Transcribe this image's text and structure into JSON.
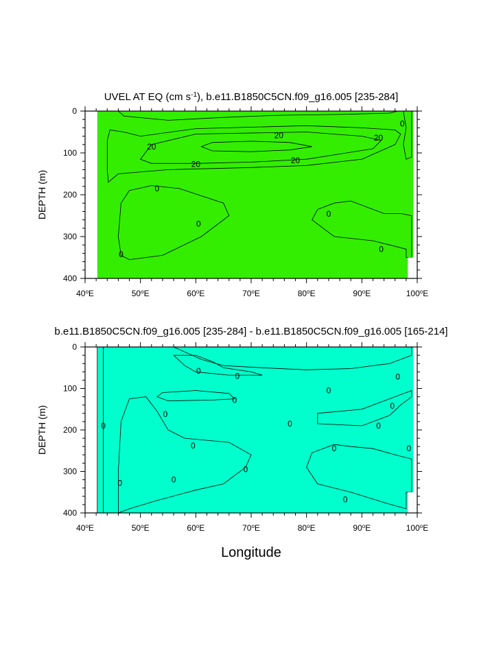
{
  "colors": {
    "neg": "#00ffcc",
    "low": "#33ee00",
    "mid": "#66ff00",
    "hi": "#ffff00",
    "top": "#ffcc33",
    "gap": "#ffffff"
  },
  "chart_data": [
    {
      "type": "contour",
      "title": "UVEL AT EQ (cm s",
      "title_sup": "-1",
      "title_suffix": "), b.e11.B1850C5CN.f09_g16.005 [235-284]",
      "xlabel": "",
      "ylabel": "DEPTH (m)",
      "xlim": [
        40,
        100
      ],
      "ylim": [
        400,
        0
      ],
      "x_ticks": [
        40,
        50,
        60,
        70,
        80,
        90,
        100
      ],
      "x_tick_labels": [
        "40",
        "50",
        "60",
        "70",
        "80",
        "90",
        "100"
      ],
      "x_tick_suffix": "E",
      "y_ticks": [
        0,
        100,
        200,
        300,
        400
      ],
      "y_tick_labels": [
        "0",
        "100",
        "200",
        "300",
        "400"
      ],
      "background_fill": "low",
      "regions": [
        {
          "fill": "neg",
          "points": [
            [
              46,
              0
            ],
            [
              47,
              12
            ],
            [
              55,
              22
            ],
            [
              65,
              15
            ],
            [
              75,
              10
            ],
            [
              86,
              8
            ],
            [
              95,
              5
            ],
            [
              96.5,
              0
            ]
          ]
        },
        {
          "fill": "neg",
          "points": [
            [
              97.5,
              0
            ],
            [
              99,
              0
            ],
            [
              99,
              110
            ],
            [
              98,
              115
            ],
            [
              97.5,
              80
            ],
            [
              98,
              40
            ]
          ]
        },
        {
          "fill": "mid",
          "points": [
            [
              44.5,
              45
            ],
            [
              44,
              70
            ],
            [
              44,
              140
            ],
            [
              44.2,
              170
            ],
            [
              46,
              150
            ],
            [
              55,
              140
            ],
            [
              70,
              135
            ],
            [
              80,
              130
            ],
            [
              90,
              115
            ],
            [
              96,
              80
            ],
            [
              97,
              55
            ],
            [
              96,
              45
            ],
            [
              90,
              40
            ],
            [
              80,
              35
            ],
            [
              60,
              42
            ],
            [
              50,
              60
            ],
            [
              47,
              50
            ]
          ]
        },
        {
          "fill": "hi",
          "points": [
            [
              50,
              115
            ],
            [
              52,
              125
            ],
            [
              60,
              125
            ],
            [
              70,
              122
            ],
            [
              80,
              115
            ],
            [
              92,
              90
            ],
            [
              93.5,
              70
            ],
            [
              90,
              60
            ],
            [
              80,
              50
            ],
            [
              60,
              55
            ],
            [
              52,
              80
            ]
          ]
        },
        {
          "fill": "top",
          "points": [
            [
              61,
              85
            ],
            [
              63,
              95
            ],
            [
              70,
              97
            ],
            [
              77,
              93
            ],
            [
              81,
              85
            ],
            [
              77,
              75
            ],
            [
              70,
              72
            ],
            [
              63,
              75
            ]
          ]
        },
        {
          "fill": "neg",
          "points": [
            [
              46.5,
              345
            ],
            [
              48,
              355
            ],
            [
              54,
              345
            ],
            [
              61,
              300
            ],
            [
              66,
              250
            ],
            [
              65,
              220
            ],
            [
              57,
              185
            ],
            [
              52,
              178
            ],
            [
              48,
              190
            ],
            [
              46.5,
              220
            ],
            [
              46,
              300
            ]
          ]
        },
        {
          "fill": "neg",
          "points": [
            [
              81,
              260
            ],
            [
              85,
              300
            ],
            [
              92,
              310
            ],
            [
              95,
              320
            ],
            [
              98,
              330
            ],
            [
              98,
              350
            ],
            [
              99,
              350
            ],
            [
              99,
              250
            ],
            [
              97,
              245
            ],
            [
              94,
              245
            ],
            [
              92,
              235
            ],
            [
              88,
              215
            ],
            [
              85,
              220
            ],
            [
              82,
              235
            ]
          ]
        }
      ],
      "contour_labels": [
        {
          "text": "20",
          "x": 52,
          "y": 85
        },
        {
          "text": "20",
          "x": 75,
          "y": 58
        },
        {
          "text": "20",
          "x": 93,
          "y": 64
        },
        {
          "text": "20",
          "x": 60,
          "y": 127
        },
        {
          "text": "20",
          "x": 78,
          "y": 118
        },
        {
          "text": "0",
          "x": 53,
          "y": 185
        },
        {
          "text": "0",
          "x": 60.5,
          "y": 270
        },
        {
          "text": "0",
          "x": 46.5,
          "y": 343
        },
        {
          "text": "0",
          "x": 84,
          "y": 246
        },
        {
          "text": "0",
          "x": 93.5,
          "y": 330
        },
        {
          "text": "0",
          "x": 97.3,
          "y": 30
        }
      ]
    },
    {
      "type": "contour",
      "title": "b.e11.B1850C5CN.f09_g16.005 [235-284] - b.e11.B1850C5CN.f09_g16.005 [165-214]",
      "xlabel": "Longitude",
      "ylabel": "DEPTH (m)",
      "xlim": [
        40,
        100
      ],
      "ylim": [
        400,
        0
      ],
      "x_ticks": [
        40,
        50,
        60,
        70,
        80,
        90,
        100
      ],
      "x_tick_labels": [
        "40",
        "50",
        "60",
        "70",
        "80",
        "90",
        "100"
      ],
      "x_tick_suffix": "E",
      "y_ticks": [
        0,
        100,
        200,
        300,
        400
      ],
      "y_tick_labels": [
        "0",
        "100",
        "200",
        "300",
        "400"
      ],
      "background_fill": "neg",
      "regions": [
        {
          "fill": "low",
          "points": [
            [
              42.2,
              0
            ],
            [
              43.3,
              0
            ],
            [
              43.3,
              400
            ],
            [
              42.2,
              400
            ]
          ]
        },
        {
          "fill": "low",
          "points": [
            [
              46,
              400
            ],
            [
              48,
              390
            ],
            [
              53,
              370
            ],
            [
              60,
              345
            ],
            [
              65,
              330
            ],
            [
              69,
              290
            ],
            [
              70,
              260
            ],
            [
              66,
              230
            ],
            [
              58,
              220
            ],
            [
              55,
              200
            ],
            [
              53,
              155
            ],
            [
              51,
              120
            ],
            [
              48,
              125
            ],
            [
              46.5,
              180
            ],
            [
              46,
              300
            ]
          ]
        },
        {
          "fill": "low",
          "points": [
            [
              53,
              120
            ],
            [
              55,
              130
            ],
            [
              63,
              128
            ],
            [
              67,
              125
            ],
            [
              66,
              112
            ],
            [
              60,
              105
            ],
            [
              54,
              110
            ]
          ]
        },
        {
          "fill": "low",
          "points": [
            [
              58,
              45
            ],
            [
              60,
              60
            ],
            [
              66,
              68
            ],
            [
              72,
              68
            ],
            [
              70,
              60
            ],
            [
              65,
              50
            ],
            [
              63,
              35
            ],
            [
              60,
              20
            ],
            [
              56,
              20
            ]
          ]
        },
        {
          "fill": "low",
          "points": [
            [
              56,
              0
            ],
            [
              61,
              30
            ],
            [
              65,
              45
            ],
            [
              72,
              50
            ],
            [
              80,
              55
            ],
            [
              88,
              52
            ],
            [
              95,
              40
            ],
            [
              98,
              25
            ],
            [
              99,
              20
            ],
            [
              99,
              0
            ]
          ]
        },
        {
          "fill": "low",
          "points": [
            [
              82,
              160
            ],
            [
              82,
              185
            ],
            [
              90,
              190
            ],
            [
              95,
              165
            ],
            [
              97,
              140
            ],
            [
              99,
              120
            ],
            [
              99,
              105
            ],
            [
              96,
              120
            ],
            [
              93,
              135
            ],
            [
              90,
              150
            ],
            [
              86,
              155
            ]
          ]
        },
        {
          "fill": "low",
          "points": [
            [
              80,
              290
            ],
            [
              82,
              330
            ],
            [
              88,
              350
            ],
            [
              94,
              375
            ],
            [
              98,
              390
            ],
            [
              98,
              350
            ],
            [
              99,
              350
            ],
            [
              99,
              270
            ],
            [
              96,
              260
            ],
            [
              92,
              245
            ],
            [
              88,
              240
            ],
            [
              85,
              235
            ],
            [
              81,
              255
            ]
          ]
        }
      ],
      "contour_labels": [
        {
          "text": "0",
          "x": 43.3,
          "y": 190
        },
        {
          "text": "0",
          "x": 46.3,
          "y": 328
        },
        {
          "text": "0",
          "x": 54.5,
          "y": 162
        },
        {
          "text": "0",
          "x": 56,
          "y": 320
        },
        {
          "text": "0",
          "x": 59.5,
          "y": 238
        },
        {
          "text": "0",
          "x": 69,
          "y": 295
        },
        {
          "text": "0",
          "x": 60.5,
          "y": 58
        },
        {
          "text": "0",
          "x": 67.5,
          "y": 70
        },
        {
          "text": "0",
          "x": 67,
          "y": 128
        },
        {
          "text": "0",
          "x": 77,
          "y": 185
        },
        {
          "text": "0",
          "x": 84,
          "y": 105
        },
        {
          "text": "0",
          "x": 93,
          "y": 190
        },
        {
          "text": "0",
          "x": 96.5,
          "y": 72
        },
        {
          "text": "0",
          "x": 95.5,
          "y": 142
        },
        {
          "text": "0",
          "x": 98.5,
          "y": 245
        },
        {
          "text": "0",
          "x": 85,
          "y": 245
        },
        {
          "text": "0",
          "x": 87,
          "y": 368
        }
      ]
    }
  ]
}
